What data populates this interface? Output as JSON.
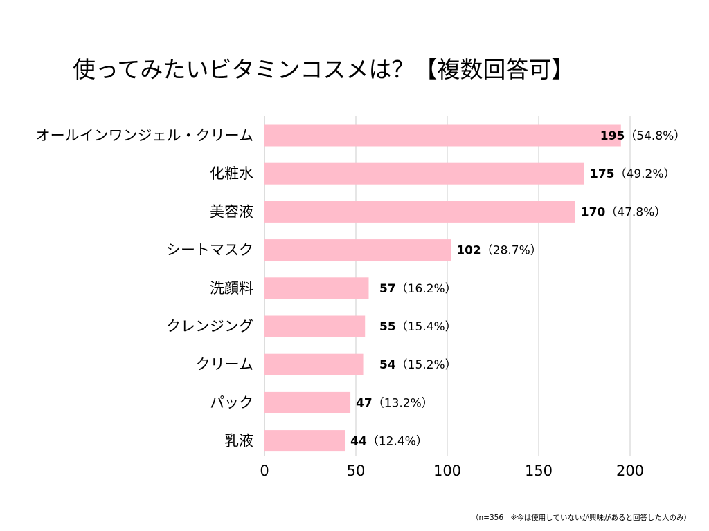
{
  "chart_data": {
    "type": "bar",
    "orientation": "horizontal",
    "title": "使ってみたいビタミンコスメは？【複数回答可】",
    "categories": [
      "オールインワンジェル・クリーム",
      "化粧水",
      "美容液",
      "シートマスク",
      "洗顔料",
      "クレンジング",
      "クリーム",
      "パック",
      "乳液"
    ],
    "values": [
      195,
      175,
      170,
      102,
      57,
      55,
      54,
      47,
      44
    ],
    "percentages": [
      "（54.8%）",
      "（49.2%）",
      "（47.8%）",
      "（28.7%）",
      "（16.2%）",
      "（15.4%）",
      "（15.2%）",
      "（13.2%）",
      "（12.4%）"
    ],
    "xlim": [
      0,
      200
    ],
    "xticks": [
      0,
      50,
      100,
      150,
      200
    ],
    "xlabel": "",
    "ylabel": "",
    "grid": true,
    "bar_color": "#ffbccb",
    "grid_color": "#cccccc",
    "note": "（n=356　※今は使用していないが興味があると回答した人のみ）"
  }
}
